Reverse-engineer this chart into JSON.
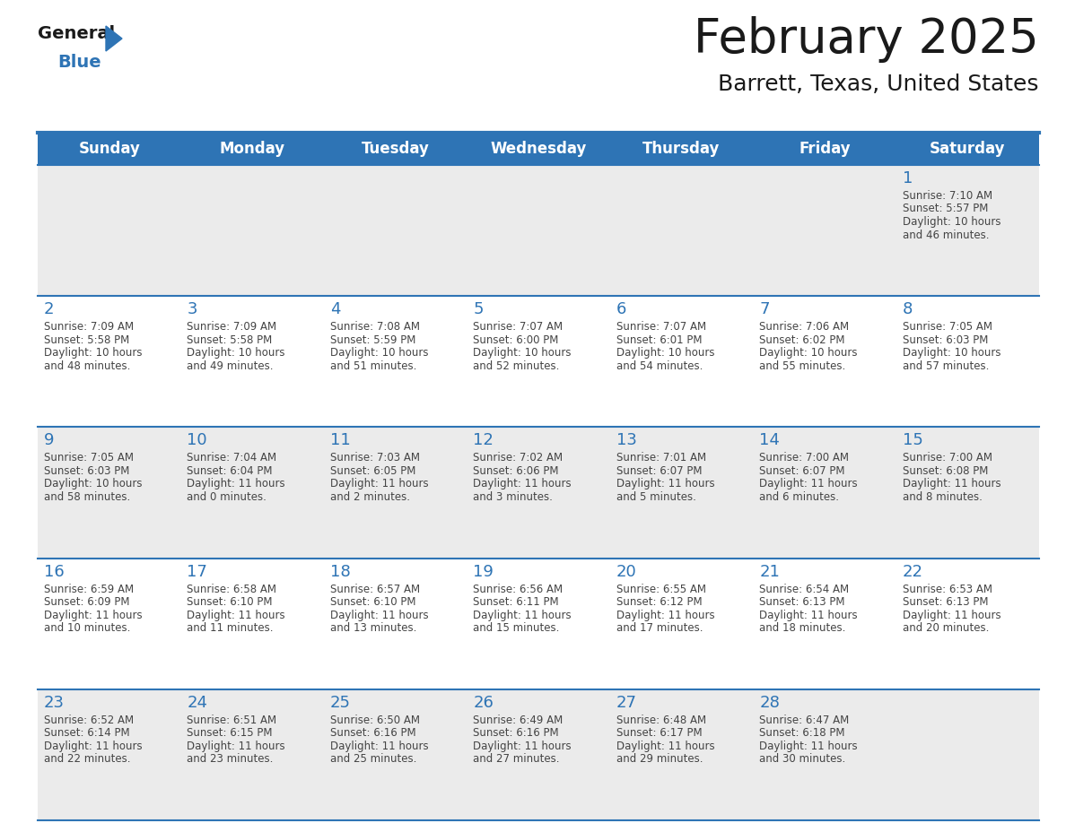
{
  "title": "February 2025",
  "subtitle": "Barrett, Texas, United States",
  "header_bg_color": "#2E74B5",
  "header_text_color": "#FFFFFF",
  "day_names": [
    "Sunday",
    "Monday",
    "Tuesday",
    "Wednesday",
    "Thursday",
    "Friday",
    "Saturday"
  ],
  "row_bg_colors": [
    "#EBEBEB",
    "#FFFFFF",
    "#EBEBEB",
    "#FFFFFF",
    "#EBEBEB"
  ],
  "text_color": "#444444",
  "day_num_color": "#2E74B5",
  "border_color": "#2E74B5",
  "border_color_light": "#CCCCCC",
  "calendar_data": [
    [
      {
        "day": "",
        "sunrise": "",
        "sunset": "",
        "daylight_h": "",
        "daylight_m": ""
      },
      {
        "day": "",
        "sunrise": "",
        "sunset": "",
        "daylight_h": "",
        "daylight_m": ""
      },
      {
        "day": "",
        "sunrise": "",
        "sunset": "",
        "daylight_h": "",
        "daylight_m": ""
      },
      {
        "day": "",
        "sunrise": "",
        "sunset": "",
        "daylight_h": "",
        "daylight_m": ""
      },
      {
        "day": "",
        "sunrise": "",
        "sunset": "",
        "daylight_h": "",
        "daylight_m": ""
      },
      {
        "day": "",
        "sunrise": "",
        "sunset": "",
        "daylight_h": "",
        "daylight_m": ""
      },
      {
        "day": "1",
        "sunrise": "7:10 AM",
        "sunset": "5:57 PM",
        "daylight_h": "10 hours",
        "daylight_m": "and 46 minutes."
      }
    ],
    [
      {
        "day": "2",
        "sunrise": "7:09 AM",
        "sunset": "5:58 PM",
        "daylight_h": "10 hours",
        "daylight_m": "and 48 minutes."
      },
      {
        "day": "3",
        "sunrise": "7:09 AM",
        "sunset": "5:58 PM",
        "daylight_h": "10 hours",
        "daylight_m": "and 49 minutes."
      },
      {
        "day": "4",
        "sunrise": "7:08 AM",
        "sunset": "5:59 PM",
        "daylight_h": "10 hours",
        "daylight_m": "and 51 minutes."
      },
      {
        "day": "5",
        "sunrise": "7:07 AM",
        "sunset": "6:00 PM",
        "daylight_h": "10 hours",
        "daylight_m": "and 52 minutes."
      },
      {
        "day": "6",
        "sunrise": "7:07 AM",
        "sunset": "6:01 PM",
        "daylight_h": "10 hours",
        "daylight_m": "and 54 minutes."
      },
      {
        "day": "7",
        "sunrise": "7:06 AM",
        "sunset": "6:02 PM",
        "daylight_h": "10 hours",
        "daylight_m": "and 55 minutes."
      },
      {
        "day": "8",
        "sunrise": "7:05 AM",
        "sunset": "6:03 PM",
        "daylight_h": "10 hours",
        "daylight_m": "and 57 minutes."
      }
    ],
    [
      {
        "day": "9",
        "sunrise": "7:05 AM",
        "sunset": "6:03 PM",
        "daylight_h": "10 hours",
        "daylight_m": "and 58 minutes."
      },
      {
        "day": "10",
        "sunrise": "7:04 AM",
        "sunset": "6:04 PM",
        "daylight_h": "11 hours",
        "daylight_m": "and 0 minutes."
      },
      {
        "day": "11",
        "sunrise": "7:03 AM",
        "sunset": "6:05 PM",
        "daylight_h": "11 hours",
        "daylight_m": "and 2 minutes."
      },
      {
        "day": "12",
        "sunrise": "7:02 AM",
        "sunset": "6:06 PM",
        "daylight_h": "11 hours",
        "daylight_m": "and 3 minutes."
      },
      {
        "day": "13",
        "sunrise": "7:01 AM",
        "sunset": "6:07 PM",
        "daylight_h": "11 hours",
        "daylight_m": "and 5 minutes."
      },
      {
        "day": "14",
        "sunrise": "7:00 AM",
        "sunset": "6:07 PM",
        "daylight_h": "11 hours",
        "daylight_m": "and 6 minutes."
      },
      {
        "day": "15",
        "sunrise": "7:00 AM",
        "sunset": "6:08 PM",
        "daylight_h": "11 hours",
        "daylight_m": "and 8 minutes."
      }
    ],
    [
      {
        "day": "16",
        "sunrise": "6:59 AM",
        "sunset": "6:09 PM",
        "daylight_h": "11 hours",
        "daylight_m": "and 10 minutes."
      },
      {
        "day": "17",
        "sunrise": "6:58 AM",
        "sunset": "6:10 PM",
        "daylight_h": "11 hours",
        "daylight_m": "and 11 minutes."
      },
      {
        "day": "18",
        "sunrise": "6:57 AM",
        "sunset": "6:10 PM",
        "daylight_h": "11 hours",
        "daylight_m": "and 13 minutes."
      },
      {
        "day": "19",
        "sunrise": "6:56 AM",
        "sunset": "6:11 PM",
        "daylight_h": "11 hours",
        "daylight_m": "and 15 minutes."
      },
      {
        "day": "20",
        "sunrise": "6:55 AM",
        "sunset": "6:12 PM",
        "daylight_h": "11 hours",
        "daylight_m": "and 17 minutes."
      },
      {
        "day": "21",
        "sunrise": "6:54 AM",
        "sunset": "6:13 PM",
        "daylight_h": "11 hours",
        "daylight_m": "and 18 minutes."
      },
      {
        "day": "22",
        "sunrise": "6:53 AM",
        "sunset": "6:13 PM",
        "daylight_h": "11 hours",
        "daylight_m": "and 20 minutes."
      }
    ],
    [
      {
        "day": "23",
        "sunrise": "6:52 AM",
        "sunset": "6:14 PM",
        "daylight_h": "11 hours",
        "daylight_m": "and 22 minutes."
      },
      {
        "day": "24",
        "sunrise": "6:51 AM",
        "sunset": "6:15 PM",
        "daylight_h": "11 hours",
        "daylight_m": "and 23 minutes."
      },
      {
        "day": "25",
        "sunrise": "6:50 AM",
        "sunset": "6:16 PM",
        "daylight_h": "11 hours",
        "daylight_m": "and 25 minutes."
      },
      {
        "day": "26",
        "sunrise": "6:49 AM",
        "sunset": "6:16 PM",
        "daylight_h": "11 hours",
        "daylight_m": "and 27 minutes."
      },
      {
        "day": "27",
        "sunrise": "6:48 AM",
        "sunset": "6:17 PM",
        "daylight_h": "11 hours",
        "daylight_m": "and 29 minutes."
      },
      {
        "day": "28",
        "sunrise": "6:47 AM",
        "sunset": "6:18 PM",
        "daylight_h": "11 hours",
        "daylight_m": "and 30 minutes."
      },
      {
        "day": "",
        "sunrise": "",
        "sunset": "",
        "daylight_h": "",
        "daylight_m": ""
      }
    ]
  ]
}
